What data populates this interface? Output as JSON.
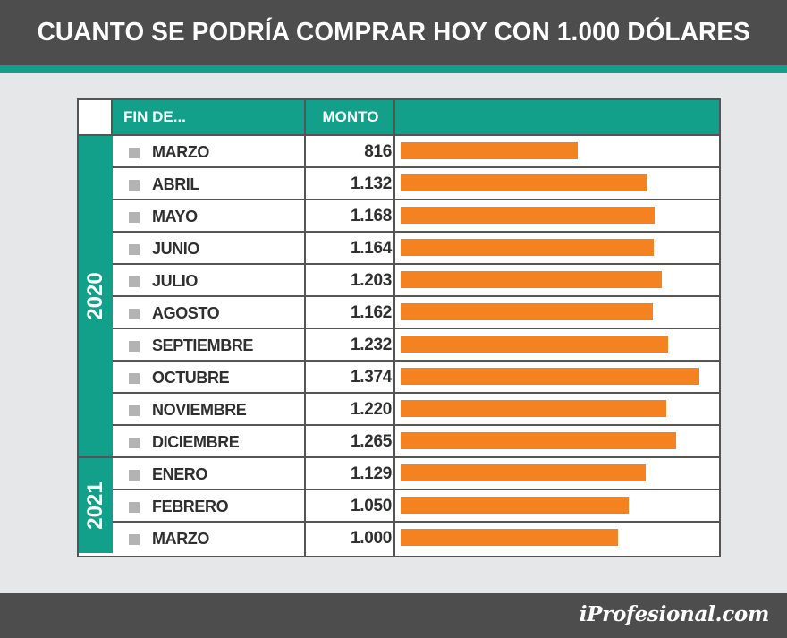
{
  "header": {
    "title": "CUANTO SE PODRÍA COMPRAR HOY CON 1.000 DÓLARES"
  },
  "footer": {
    "logo": "iProfesional.com"
  },
  "colors": {
    "accent": "#12a08a",
    "bar": "#f58220",
    "dark": "#4d4d4d"
  },
  "table": {
    "col_month": "FIN DE...",
    "col_amount": "MONTO"
  },
  "chart_data": {
    "type": "bar",
    "orientation": "horizontal",
    "title": "CUANTO SE PODRÍA COMPRAR HOY CON 1.000 DÓLARES",
    "groups": [
      {
        "year": "2020",
        "months": [
          "MARZO",
          "ABRIL",
          "MAYO",
          "JUNIO",
          "JULIO",
          "AGOSTO",
          "SEPTIEMBRE",
          "OCTUBRE",
          "NOVIEMBRE",
          "DICIEMBRE"
        ]
      },
      {
        "year": "2021",
        "months": [
          "ENERO",
          "FEBRERO",
          "MARZO"
        ]
      }
    ],
    "categories": [
      "MARZO",
      "ABRIL",
      "MAYO",
      "JUNIO",
      "JULIO",
      "AGOSTO",
      "SEPTIEMBRE",
      "OCTUBRE",
      "NOVIEMBRE",
      "DICIEMBRE",
      "ENERO",
      "FEBRERO",
      "MARZO"
    ],
    "labels": [
      "816",
      "1.132",
      "1.168",
      "1.164",
      "1.203",
      "1.162",
      "1.232",
      "1.374",
      "1.220",
      "1.265",
      "1.129",
      "1.050",
      "1.000"
    ],
    "values": [
      816,
      1132,
      1168,
      1164,
      1203,
      1162,
      1232,
      1374,
      1220,
      1265,
      1129,
      1050,
      1000
    ],
    "xlim": [
      0,
      1374
    ]
  }
}
